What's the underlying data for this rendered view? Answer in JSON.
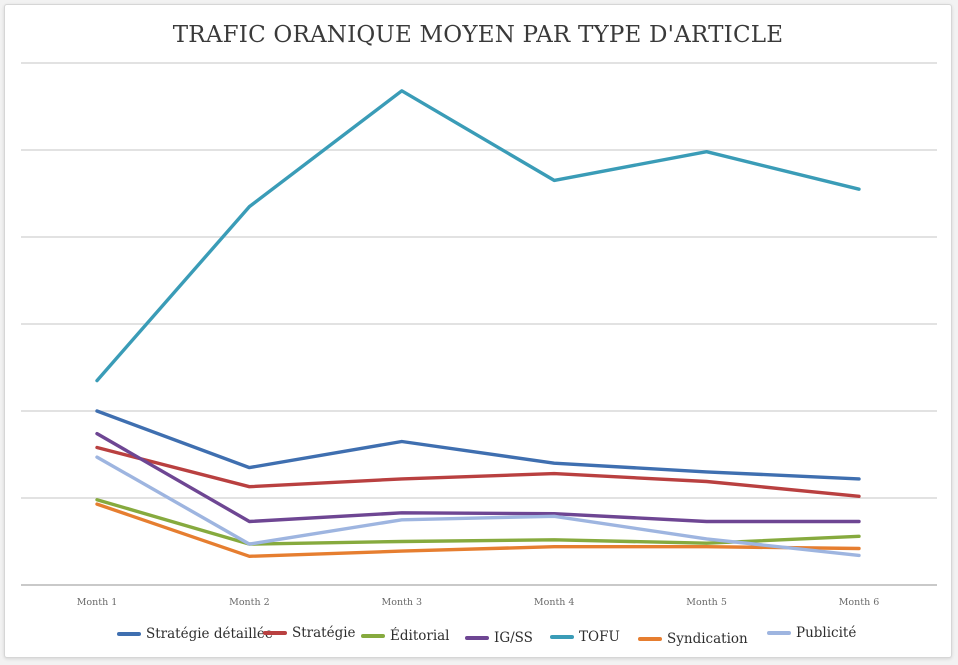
{
  "chart_data": {
    "type": "line",
    "title": "TRAFIC ORANIQUE MOYEN PAR TYPE D'ARTICLE",
    "xlabel": "",
    "ylabel": "",
    "categories": [
      "Month 1",
      "Month 2",
      "Month 3",
      "Month 4",
      "Month 5",
      "Month 6"
    ],
    "ylim": [
      0,
      6
    ],
    "y_tick_labels_shown": false,
    "grid": "horizontal",
    "legend_position": "bottom",
    "series": [
      {
        "name": "Stratégie détaillée",
        "color": "#3f6fb0",
        "values": [
          2.0,
          1.35,
          1.65,
          1.4,
          1.3,
          1.22
        ]
      },
      {
        "name": "Stratégie",
        "color": "#b94040",
        "values": [
          1.58,
          1.13,
          1.22,
          1.28,
          1.19,
          1.02
        ]
      },
      {
        "name": "Éditorial",
        "color": "#86aa3e",
        "values": [
          0.98,
          0.47,
          0.5,
          0.52,
          0.48,
          0.56
        ]
      },
      {
        "name": "IG/SS",
        "color": "#6e4693",
        "values": [
          1.74,
          0.73,
          0.83,
          0.82,
          0.73,
          0.73
        ]
      },
      {
        "name": "TOFU",
        "color": "#3a9cb7",
        "values": [
          2.35,
          4.35,
          5.68,
          4.65,
          4.98,
          4.55
        ]
      },
      {
        "name": "Syndication",
        "color": "#e67e30",
        "values": [
          0.93,
          0.33,
          0.39,
          0.44,
          0.44,
          0.42
        ]
      },
      {
        "name": "Publicité",
        "color": "#9eb5e0",
        "values": [
          1.47,
          0.47,
          0.75,
          0.79,
          0.53,
          0.34
        ]
      }
    ]
  }
}
